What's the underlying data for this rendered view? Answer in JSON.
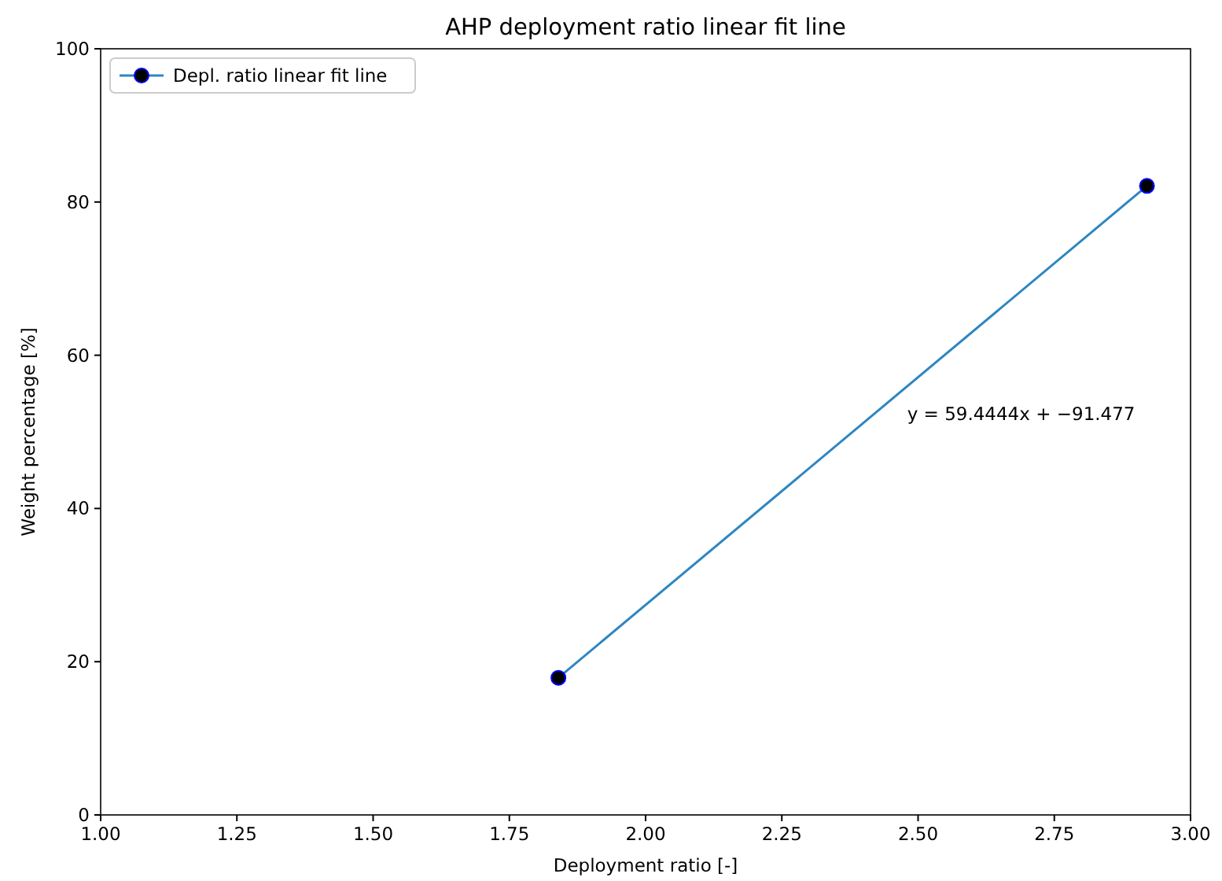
{
  "chart_data": {
    "type": "line",
    "title": "AHP deployment ratio linear fit line",
    "xlabel": "Deployment ratio [-]",
    "ylabel": "Weight percentage [%]",
    "x": [
      1.84,
      2.92
    ],
    "series": [
      {
        "name": "Depl. ratio linear fit line",
        "color": "#2e86c1",
        "values": [
          17.9,
          82.1
        ]
      }
    ],
    "xlim": [
      1,
      3
    ],
    "xticks": [
      {
        "value": 1,
        "label": "1.00"
      },
      {
        "value": 1.25,
        "label": "1.25"
      },
      {
        "value": 1.5,
        "label": "1.50"
      },
      {
        "value": 1.75,
        "label": "1.75"
      },
      {
        "value": 2,
        "label": "2.00"
      },
      {
        "value": 2.25,
        "label": "2.25"
      },
      {
        "value": 2.5,
        "label": "2.50"
      },
      {
        "value": 2.75,
        "label": "2.75"
      },
      {
        "value": 3,
        "label": "3.00"
      }
    ],
    "ylim": [
      0,
      100
    ],
    "yticks": [
      0,
      20,
      40,
      60,
      80,
      100
    ],
    "annotations": [
      "y = 59.4444x + −91.477"
    ],
    "legend": "top left",
    "marker": "circle",
    "line_style": "solid",
    "grid": false
  }
}
